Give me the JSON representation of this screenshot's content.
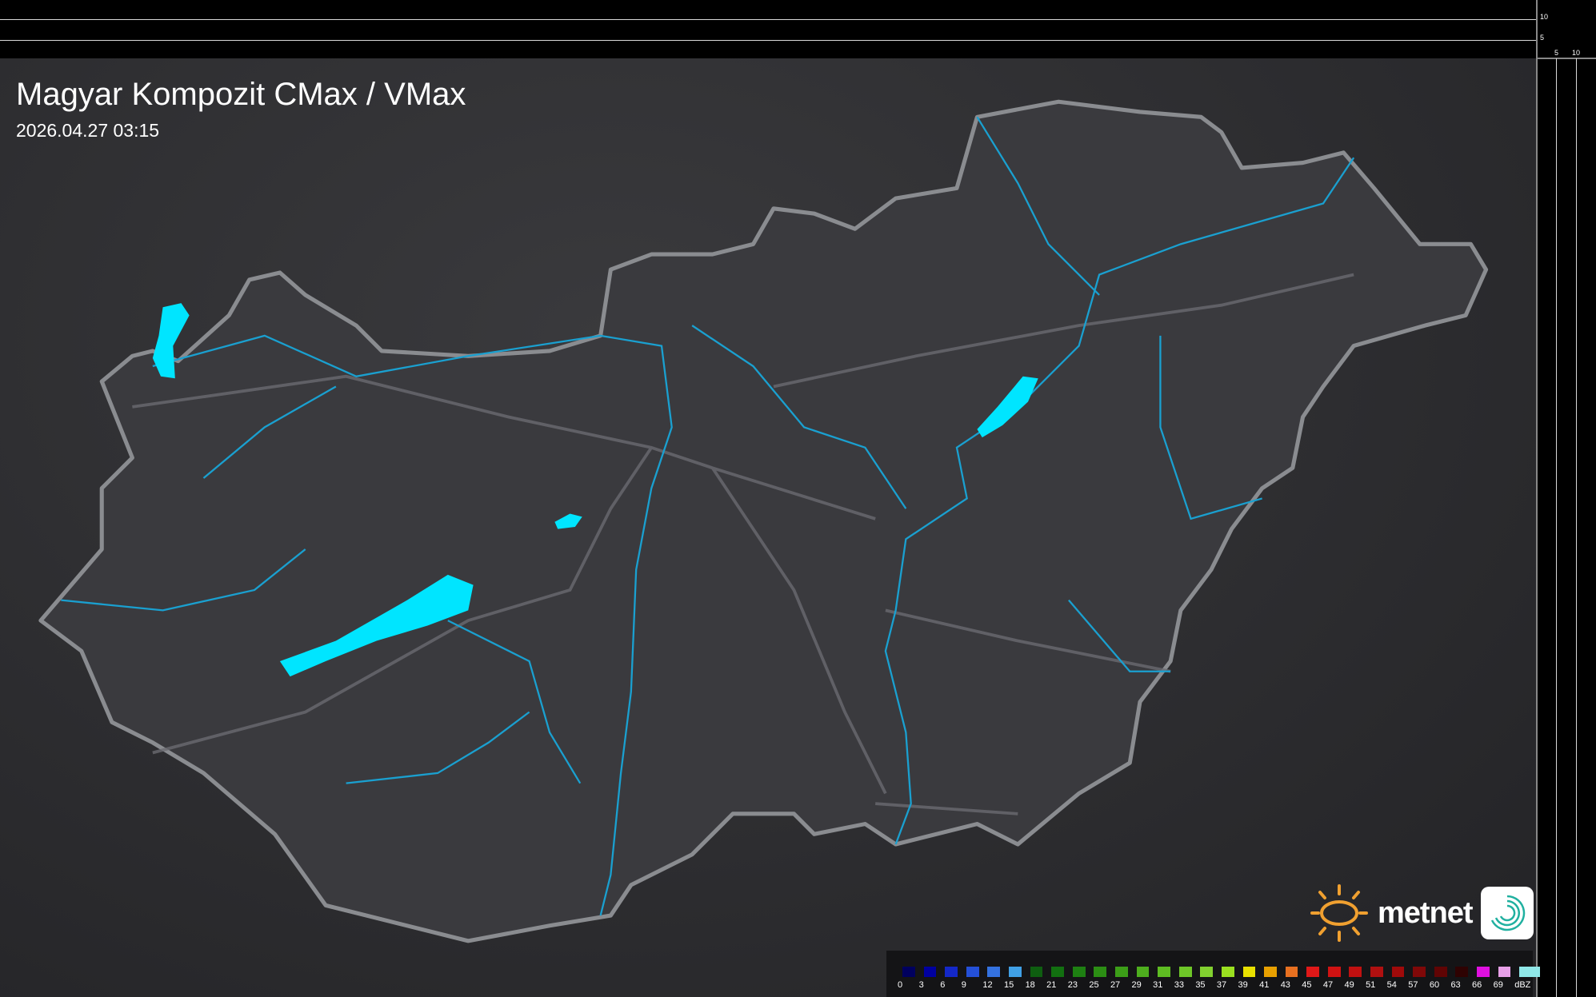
{
  "header": {
    "title": "Magyar Kompozit CMax / VMax",
    "timestamp": "2026.04.27 03:15"
  },
  "side_axes": {
    "right_ticks": [
      "10",
      "5"
    ],
    "bottom_ticks": [
      "5",
      "10"
    ]
  },
  "legend": {
    "unit": "dBZ",
    "items": [
      {
        "label": "0",
        "color": "#00005e"
      },
      {
        "label": "3",
        "color": "#0000a0"
      },
      {
        "label": "6",
        "color": "#1428c8"
      },
      {
        "label": "9",
        "color": "#2450d8"
      },
      {
        "label": "12",
        "color": "#3472e0"
      },
      {
        "label": "15",
        "color": "#40a0e6"
      },
      {
        "label": "18",
        "color": "#0e5e10"
      },
      {
        "label": "21",
        "color": "#127010"
      },
      {
        "label": "23",
        "color": "#1e8012"
      },
      {
        "label": "25",
        "color": "#2c8e14"
      },
      {
        "label": "27",
        "color": "#3c9e18"
      },
      {
        "label": "29",
        "color": "#4eae1e"
      },
      {
        "label": "31",
        "color": "#5ebc22"
      },
      {
        "label": "33",
        "color": "#6ec628"
      },
      {
        "label": "35",
        "color": "#82d030"
      },
      {
        "label": "37",
        "color": "#9ae020"
      },
      {
        "label": "39",
        "color": "#e8e000"
      },
      {
        "label": "41",
        "color": "#e8a000"
      },
      {
        "label": "43",
        "color": "#e87020"
      },
      {
        "label": "45",
        "color": "#e01818"
      },
      {
        "label": "47",
        "color": "#d01212"
      },
      {
        "label": "49",
        "color": "#c01010"
      },
      {
        "label": "51",
        "color": "#b01010"
      },
      {
        "label": "54",
        "color": "#a00a0a"
      },
      {
        "label": "57",
        "color": "#800808"
      },
      {
        "label": "60",
        "color": "#600404"
      },
      {
        "label": "63",
        "color": "#2e0202"
      },
      {
        "label": "66",
        "color": "#e010e0"
      },
      {
        "label": "69",
        "color": "#e8a0e8"
      }
    ],
    "last_color": "#90e8e8"
  },
  "map": {
    "country_border_color": "#8a8c90",
    "water_color": "#00e5ff",
    "river_color": "#1aa0d0",
    "land_color": "#3a3a3e"
  },
  "branding": {
    "logo_text": "metnet",
    "sun_color": "#f0a030",
    "icon_color": "#20b0a0"
  }
}
